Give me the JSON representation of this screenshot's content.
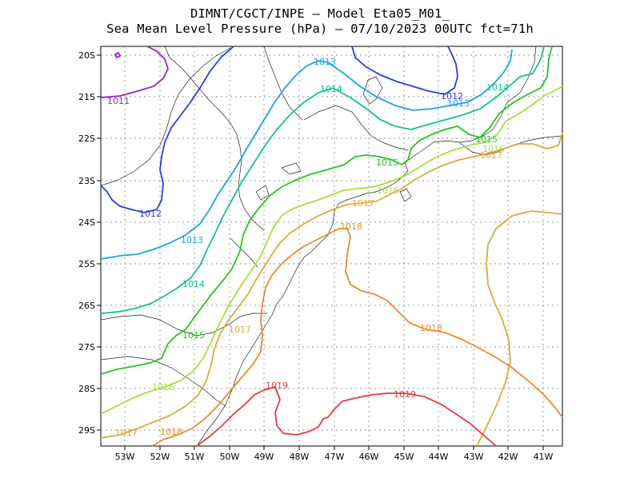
{
  "title": {
    "line1": "DIMNT/CGCT/INPE –  Model Eta05_M01_",
    "line2": "Sea Mean Level Pressure (hPa) – 07/10/2023 00UTC fct=71h"
  },
  "axes": {
    "lat_labels": [
      "20S",
      "21S",
      "22S",
      "23S",
      "24S",
      "25S",
      "26S",
      "27S",
      "28S",
      "29S"
    ],
    "lon_labels": [
      "53W",
      "52W",
      "51W",
      "50W",
      "49W",
      "48W",
      "47W",
      "46W",
      "45W",
      "44W",
      "43W",
      "42W",
      "41W"
    ]
  },
  "colors": {
    "1011": "#9a1fc9",
    "1012": "#2a3fd6",
    "1013": "#1aa3e8",
    "1014": "#12c48a",
    "1015": "#22c81e",
    "1016": "#a6e03a",
    "1017": "#e0a93a",
    "1018": "#ec8a2e",
    "1019": "#e83a3a"
  },
  "contour_labels": [
    {
      "text": "1011",
      "level": "1011"
    },
    {
      "text": "1012",
      "level": "1012"
    },
    {
      "text": "1012",
      "level": "1012"
    },
    {
      "text": "1013",
      "level": "1013"
    },
    {
      "text": "1013",
      "level": "1013"
    },
    {
      "text": "1013",
      "level": "1013"
    },
    {
      "text": "1014",
      "level": "1014"
    },
    {
      "text": "1014",
      "level": "1014"
    },
    {
      "text": "1014",
      "level": "1014"
    },
    {
      "text": "1015",
      "level": "1015"
    },
    {
      "text": "1015",
      "level": "1015"
    },
    {
      "text": "1015",
      "level": "1015"
    },
    {
      "text": "1016",
      "level": "1016"
    },
    {
      "text": "1016",
      "level": "1016"
    },
    {
      "text": "1016",
      "level": "1016"
    },
    {
      "text": "1017",
      "level": "1017"
    },
    {
      "text": "1017",
      "level": "1017"
    },
    {
      "text": "1017",
      "level": "1017"
    },
    {
      "text": "1017",
      "level": "1017"
    },
    {
      "text": "1018",
      "level": "1018"
    },
    {
      "text": "1018",
      "level": "1018"
    },
    {
      "text": "1018",
      "level": "1018"
    },
    {
      "text": "1019",
      "level": "1019"
    },
    {
      "text": "1019",
      "level": "1019"
    }
  ]
}
